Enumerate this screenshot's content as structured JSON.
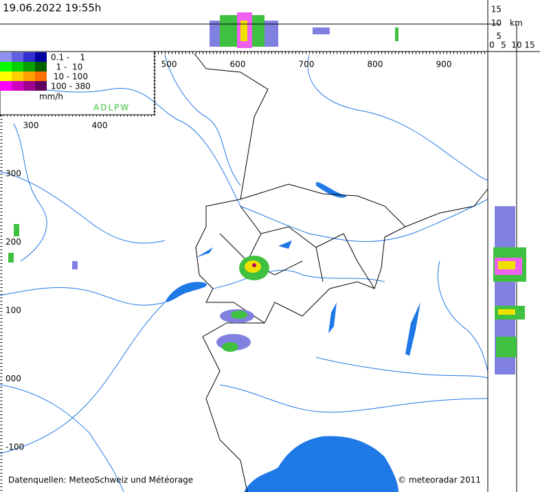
{
  "header": {
    "timestamp": "19.06.2022 19:55h"
  },
  "vertical_scale": {
    "labels": [
      "15",
      "10",
      "5"
    ],
    "unit": "km"
  },
  "horizontal_scale": {
    "labels": [
      "0",
      "5",
      "10",
      "15"
    ]
  },
  "legend": {
    "rows": [
      "0.1 -    1",
      "  1 -  10",
      " 10 - 100",
      "100 - 380"
    ],
    "unit": "mm/h",
    "network": "ADLPW"
  },
  "map": {
    "x_labels": [
      "500",
      "600",
      "700",
      "800",
      "900"
    ],
    "x_labels_inner": [
      "300",
      "400"
    ],
    "y_labels": [
      "300",
      "200",
      "100",
      "000",
      "-100"
    ]
  },
  "footer": {
    "sources": "Datenquellen: MeteoSchweiz und Météorage",
    "copyright": "© meteoradar 2011"
  }
}
